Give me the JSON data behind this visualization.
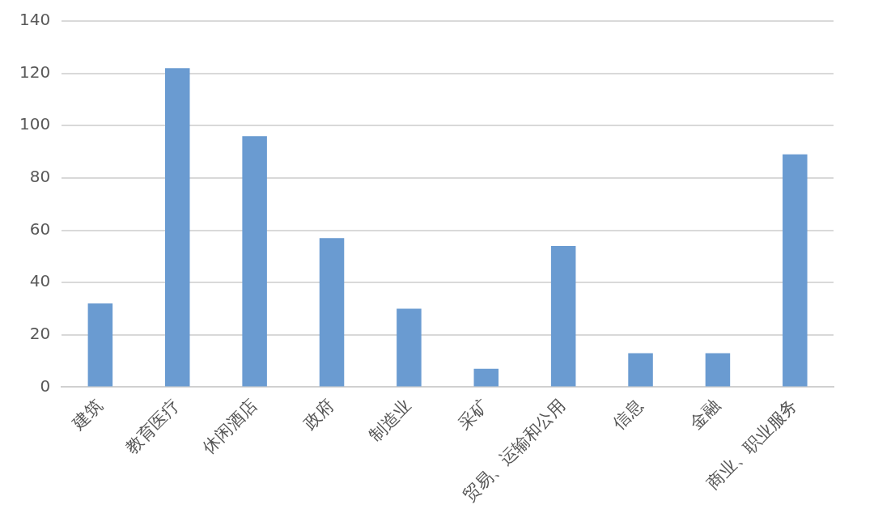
{
  "chart_data": {
    "type": "bar",
    "categories": [
      "建筑",
      "教育医疗",
      "休闲酒店",
      "政府",
      "制造业",
      "采矿",
      "贸易、运输和公用",
      "信息",
      "金融",
      "商业、职业服务"
    ],
    "values": [
      32,
      122,
      96,
      57,
      30,
      7,
      54,
      13,
      13,
      89
    ],
    "color": "#6a9bd1",
    "ylim": [
      0,
      140
    ],
    "yticks": [
      0,
      20,
      40,
      60,
      80,
      100,
      120,
      140
    ],
    "grid": "y",
    "legend": false
  }
}
